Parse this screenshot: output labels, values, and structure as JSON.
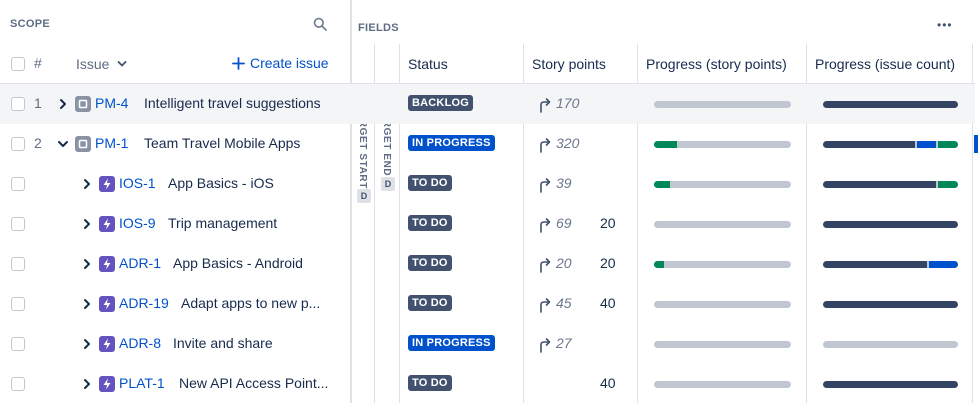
{
  "scope": {
    "label": "SCOPE",
    "hash": "#",
    "issue_col": "Issue",
    "create_issue": "Create issue"
  },
  "fields": {
    "label": "FIELDS",
    "more": "•••",
    "target_start": "TARGET START",
    "target_end": "TARGET END",
    "date_badge": "D",
    "columns": {
      "status": "Status",
      "story_points": "Story points",
      "progress_sp": "Progress (story points)",
      "progress_ic": "Progress (issue count)"
    }
  },
  "colors": {
    "done": "#00875a",
    "in_progress": "#0052cc",
    "todo": "#c1c7d0",
    "dark": "#344563",
    "link": "#0052cc"
  },
  "rows": [
    {
      "num": "1",
      "expand": "collapsed",
      "type": "epic-icon",
      "key": "PM-4",
      "summary": "Intelligent travel suggestions",
      "status": "BACKLOG",
      "status_kind": "backlog",
      "sp_rollup": "170",
      "sp_own": "",
      "progress_sp": {
        "done": 0,
        "in_progress": 0
      },
      "progress_ic": {
        "done": 1.0,
        "in_progress": 0,
        "dark": true
      }
    },
    {
      "num": "2",
      "expand": "expanded",
      "type": "epic-icon",
      "key": "PM-1",
      "summary": "Team Travel Mobile Apps",
      "status": "IN PROGRESS",
      "status_kind": "inprogress",
      "sp_rollup": "320",
      "sp_own": "",
      "progress_sp": {
        "done": 0.17,
        "in_progress": 0
      },
      "progress_ic": {
        "done": 0.7,
        "in_progress": 0.15,
        "green": 0.15
      }
    },
    {
      "num": "",
      "expand": "collapsed",
      "type": "story-icon",
      "key": "IOS-1",
      "summary": "App Basics - iOS",
      "status": "TO DO",
      "status_kind": "todo",
      "sp_rollup": "39",
      "sp_own": "",
      "progress_sp": {
        "done": 0.12,
        "in_progress": 0
      },
      "progress_ic": {
        "done": 0.85,
        "in_progress": 0,
        "green": 0.15
      }
    },
    {
      "num": "",
      "expand": "collapsed",
      "type": "story-icon",
      "key": "IOS-9",
      "summary": "Trip management",
      "status": "TO DO",
      "status_kind": "todo",
      "sp_rollup": "69",
      "sp_own": "20",
      "progress_sp": {
        "done": 0,
        "in_progress": 0
      },
      "progress_ic": {
        "done": 1.0,
        "in_progress": 0,
        "green": 0
      }
    },
    {
      "num": "",
      "expand": "collapsed",
      "type": "story-icon",
      "key": "ADR-1",
      "summary": "App Basics - Android",
      "status": "TO DO",
      "status_kind": "todo",
      "sp_rollup": "20",
      "sp_own": "20",
      "progress_sp": {
        "done": 0.07,
        "in_progress": 0
      },
      "progress_ic": {
        "done": 0.78,
        "in_progress": 0.22,
        "green": 0
      }
    },
    {
      "num": "",
      "expand": "collapsed",
      "type": "story-icon",
      "key": "ADR-19",
      "summary": "Adapt apps to new p...",
      "status": "TO DO",
      "status_kind": "todo",
      "sp_rollup": "45",
      "sp_own": "40",
      "progress_sp": {
        "done": 0,
        "in_progress": 0
      },
      "progress_ic": {
        "done": 1.0,
        "in_progress": 0,
        "green": 0
      }
    },
    {
      "num": "",
      "expand": "collapsed",
      "type": "story-icon",
      "key": "ADR-8",
      "summary": "Invite and share",
      "status": "IN PROGRESS",
      "status_kind": "inprogress",
      "sp_rollup": "27",
      "sp_own": "",
      "progress_sp": {
        "done": 0,
        "in_progress": 0
      },
      "progress_ic": {
        "done": 0,
        "in_progress": 0,
        "green": 0
      }
    },
    {
      "num": "",
      "expand": "collapsed",
      "type": "story-icon",
      "key": "PLAT-1",
      "summary": "New API Access Point...",
      "status": "TO DO",
      "status_kind": "todo",
      "sp_rollup": "",
      "sp_own": "40",
      "progress_sp": {
        "done": 0,
        "in_progress": 0
      },
      "progress_ic": {
        "done": 1.0,
        "in_progress": 0,
        "green": 0
      }
    }
  ]
}
